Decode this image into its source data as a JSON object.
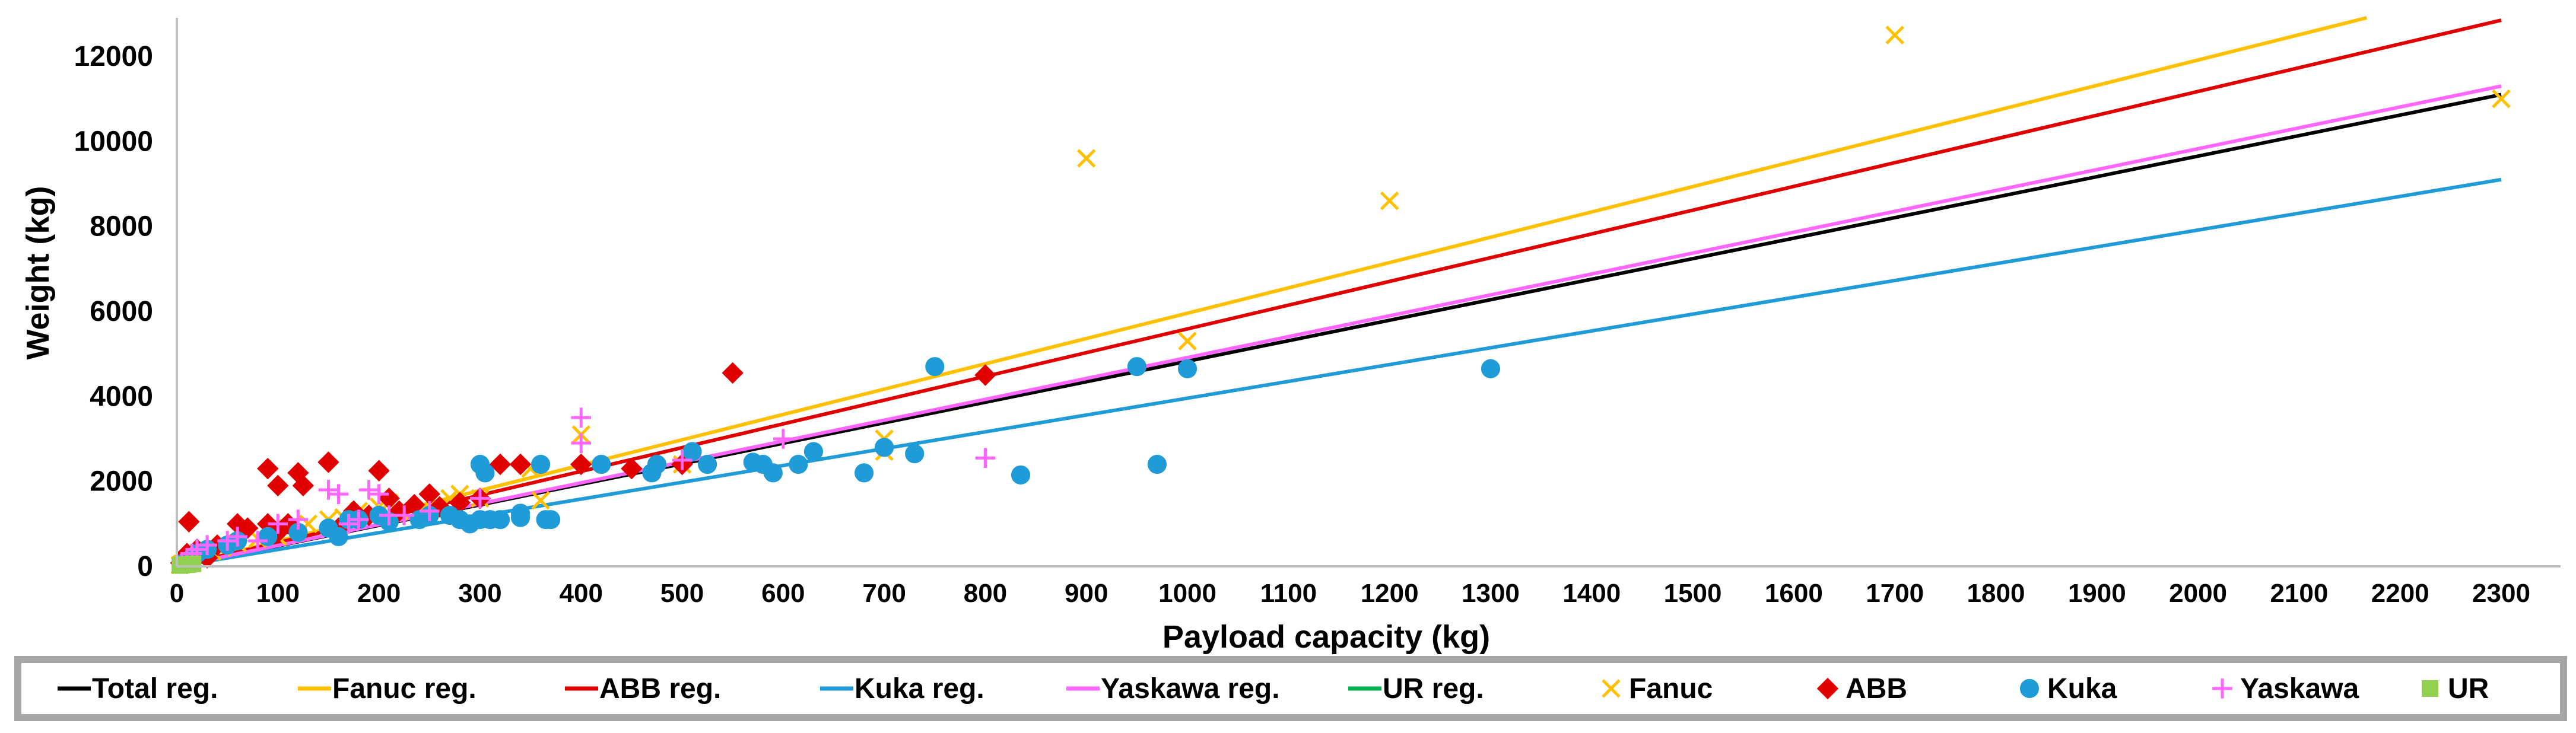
{
  "chart_data": {
    "type": "scatter",
    "xlabel": "Payload capacity (kg)",
    "ylabel": "Weight (kg)",
    "xlim": [
      0,
      2300
    ],
    "ylim": [
      0,
      12000
    ],
    "x_ticks": [
      0,
      100,
      200,
      300,
      400,
      500,
      600,
      700,
      800,
      900,
      1000,
      1100,
      1200,
      1300,
      1400,
      1500,
      1600,
      1700,
      1800,
      1900,
      2000,
      2100,
      2200,
      2300
    ],
    "y_ticks": [
      0,
      2000,
      4000,
      6000,
      8000,
      10000,
      12000
    ],
    "grid": false,
    "legend_position": "bottom",
    "regression_lines": [
      {
        "name": "Total reg.",
        "color": "#000000",
        "x": [
          0,
          2300
        ],
        "y": [
          0,
          11100
        ]
      },
      {
        "name": "Fanuc reg.",
        "color": "#FFC000",
        "x": [
          0,
          2300
        ],
        "y": [
          0,
          13700
        ]
      },
      {
        "name": "ABB reg.",
        "color": "#E00000",
        "x": [
          0,
          2300
        ],
        "y": [
          0,
          12850
        ]
      },
      {
        "name": "Kuka reg.",
        "color": "#1F9BD7",
        "x": [
          0,
          2300
        ],
        "y": [
          0,
          9100
        ]
      },
      {
        "name": "Yaskawa reg.",
        "color": "#FF66FF",
        "x": [
          0,
          2300
        ],
        "y": [
          0,
          11300
        ]
      },
      {
        "name": "UR reg.",
        "color": "#00B050",
        "x": [
          0,
          16
        ],
        "y": [
          0,
          60
        ]
      }
    ],
    "series": [
      {
        "name": "Fanuc",
        "marker": "x",
        "color": "#FFC000",
        "points": [
          [
            3,
            30
          ],
          [
            5,
            60
          ],
          [
            8,
            100
          ],
          [
            12,
            150
          ],
          [
            20,
            250
          ],
          [
            25,
            300
          ],
          [
            35,
            350
          ],
          [
            45,
            450
          ],
          [
            60,
            550
          ],
          [
            80,
            650
          ],
          [
            100,
            700
          ],
          [
            110,
            900
          ],
          [
            130,
            1000
          ],
          [
            150,
            1100
          ],
          [
            165,
            1150
          ],
          [
            180,
            1300
          ],
          [
            200,
            1400
          ],
          [
            210,
            1500
          ],
          [
            220,
            1300
          ],
          [
            250,
            1500
          ],
          [
            270,
            1600
          ],
          [
            280,
            1700
          ],
          [
            300,
            1600
          ],
          [
            350,
            2300
          ],
          [
            360,
            1550
          ],
          [
            400,
            3100
          ],
          [
            500,
            2400
          ],
          [
            700,
            2700
          ],
          [
            700,
            3000
          ],
          [
            900,
            9600
          ],
          [
            1000,
            5300
          ],
          [
            1200,
            8600
          ],
          [
            1700,
            12500
          ],
          [
            2300,
            11000
          ]
        ]
      },
      {
        "name": "ABB",
        "marker": "diamond",
        "color": "#E00000",
        "points": [
          [
            4,
            80
          ],
          [
            10,
            300
          ],
          [
            12,
            1050
          ],
          [
            20,
            400
          ],
          [
            30,
            200
          ],
          [
            40,
            500
          ],
          [
            60,
            1000
          ],
          [
            70,
            900
          ],
          [
            90,
            1000
          ],
          [
            90,
            2300
          ],
          [
            100,
            800
          ],
          [
            100,
            1900
          ],
          [
            110,
            1000
          ],
          [
            120,
            2200
          ],
          [
            125,
            1900
          ],
          [
            150,
            2450
          ],
          [
            160,
            900
          ],
          [
            175,
            1300
          ],
          [
            190,
            1200
          ],
          [
            200,
            2250
          ],
          [
            210,
            1600
          ],
          [
            220,
            1300
          ],
          [
            235,
            1450
          ],
          [
            250,
            1700
          ],
          [
            260,
            1400
          ],
          [
            280,
            1500
          ],
          [
            300,
            1600
          ],
          [
            320,
            2400
          ],
          [
            340,
            2400
          ],
          [
            400,
            2400
          ],
          [
            450,
            2300
          ],
          [
            500,
            2400
          ],
          [
            550,
            4550
          ],
          [
            800,
            4500
          ]
        ]
      },
      {
        "name": "Kuka",
        "marker": "circle",
        "color": "#1F9BD7",
        "points": [
          [
            5,
            50
          ],
          [
            8,
            100
          ],
          [
            15,
            200
          ],
          [
            20,
            300
          ],
          [
            30,
            400
          ],
          [
            50,
            500
          ],
          [
            60,
            600
          ],
          [
            90,
            700
          ],
          [
            120,
            800
          ],
          [
            150,
            900
          ],
          [
            160,
            700
          ],
          [
            170,
            1100
          ],
          [
            180,
            1100
          ],
          [
            200,
            1200
          ],
          [
            210,
            1050
          ],
          [
            240,
            1100
          ],
          [
            250,
            1200
          ],
          [
            270,
            1200
          ],
          [
            280,
            1100
          ],
          [
            290,
            1000
          ],
          [
            300,
            1100
          ],
          [
            300,
            2400
          ],
          [
            305,
            2200
          ],
          [
            310,
            1100
          ],
          [
            320,
            1100
          ],
          [
            340,
            1150
          ],
          [
            340,
            1250
          ],
          [
            360,
            2400
          ],
          [
            365,
            1100
          ],
          [
            370,
            1100
          ],
          [
            420,
            2400
          ],
          [
            470,
            2200
          ],
          [
            475,
            2400
          ],
          [
            510,
            2700
          ],
          [
            525,
            2400
          ],
          [
            570,
            2450
          ],
          [
            580,
            2400
          ],
          [
            590,
            2200
          ],
          [
            615,
            2400
          ],
          [
            630,
            2700
          ],
          [
            680,
            2200
          ],
          [
            700,
            2800
          ],
          [
            730,
            2650
          ],
          [
            750,
            4700
          ],
          [
            835,
            2150
          ],
          [
            950,
            4700
          ],
          [
            970,
            2400
          ],
          [
            1000,
            4650
          ],
          [
            1300,
            4650
          ]
        ]
      },
      {
        "name": "Yaskawa",
        "marker": "plus",
        "color": "#FF66FF",
        "points": [
          [
            5,
            100
          ],
          [
            10,
            200
          ],
          [
            15,
            300
          ],
          [
            20,
            400
          ],
          [
            30,
            500
          ],
          [
            50,
            600
          ],
          [
            60,
            700
          ],
          [
            80,
            600
          ],
          [
            100,
            1000
          ],
          [
            120,
            1100
          ],
          [
            150,
            1800
          ],
          [
            160,
            1700
          ],
          [
            170,
            1000
          ],
          [
            180,
            1100
          ],
          [
            190,
            1800
          ],
          [
            200,
            1700
          ],
          [
            210,
            1200
          ],
          [
            225,
            1200
          ],
          [
            250,
            1300
          ],
          [
            300,
            1600
          ],
          [
            400,
            3500
          ],
          [
            400,
            2900
          ],
          [
            500,
            2500
          ],
          [
            600,
            3000
          ],
          [
            800,
            2550
          ]
        ]
      },
      {
        "name": "UR",
        "marker": "square",
        "color": "#92D050",
        "points": [
          [
            3,
            20
          ],
          [
            5,
            30
          ],
          [
            10,
            40
          ],
          [
            12,
            50
          ],
          [
            16,
            60
          ]
        ]
      }
    ]
  },
  "legend": {
    "items": [
      {
        "label": "Total reg.",
        "kind": "line",
        "color": "#000000"
      },
      {
        "label": "Fanuc reg.",
        "kind": "line",
        "color": "#FFC000"
      },
      {
        "label": "ABB reg.",
        "kind": "line",
        "color": "#E00000"
      },
      {
        "label": "Kuka reg.",
        "kind": "line",
        "color": "#1F9BD7"
      },
      {
        "label": "Yaskawa reg.",
        "kind": "line",
        "color": "#FF66FF"
      },
      {
        "label": "UR reg.",
        "kind": "line",
        "color": "#00B050"
      },
      {
        "label": "Fanuc",
        "kind": "x",
        "color": "#FFC000"
      },
      {
        "label": "ABB",
        "kind": "diamond",
        "color": "#E00000"
      },
      {
        "label": "Kuka",
        "kind": "circle",
        "color": "#1F9BD7"
      },
      {
        "label": "Yaskawa",
        "kind": "plus",
        "color": "#FF66FF"
      },
      {
        "label": "UR",
        "kind": "square",
        "color": "#92D050"
      }
    ]
  }
}
